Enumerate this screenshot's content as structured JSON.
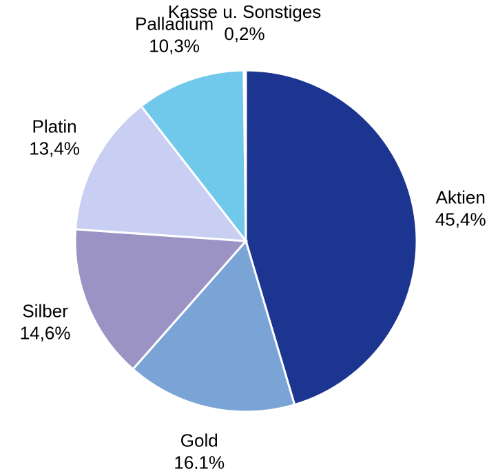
{
  "chart_data": {
    "type": "pie",
    "categories": [
      "Aktien",
      "Gold",
      "Silber",
      "Platin",
      "Palladium",
      "Kasse u. Sonstiges"
    ],
    "values": [
      45.4,
      16.1,
      14.6,
      13.4,
      10.3,
      0.2
    ],
    "value_labels": [
      "45,4%",
      "16,1%",
      "14,6%",
      "13,4%",
      "10,3%",
      "0,2%"
    ],
    "colors": [
      "#1c3590",
      "#7aa3d6",
      "#9b93c4",
      "#c8cff2",
      "#70c8ea",
      "#3a55a8"
    ]
  }
}
